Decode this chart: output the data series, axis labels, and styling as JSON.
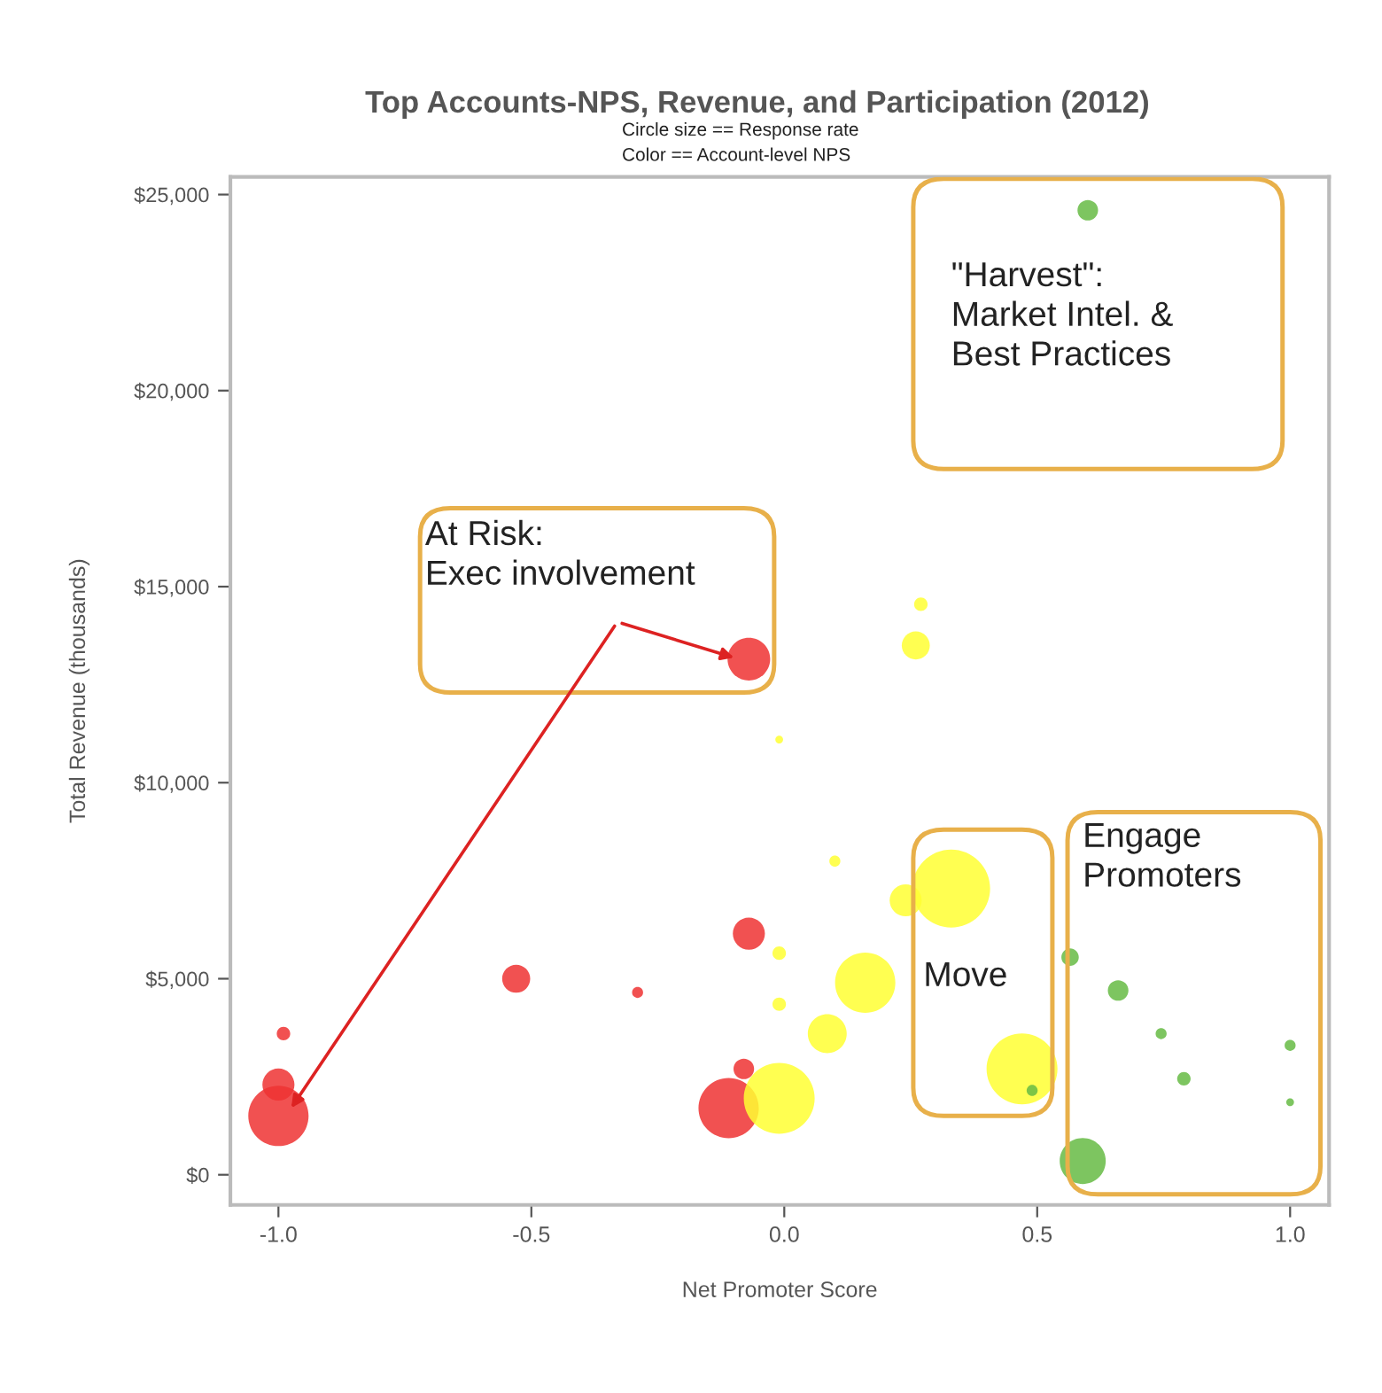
{
  "chart_data": {
    "type": "bubble",
    "title": "Top Accounts-NPS, Revenue, and Participation (2012)",
    "subtitle": "Circle size == Response rate\nColor == Account-level NPS",
    "xlabel": "Net Promoter Score",
    "ylabel": "Total Revenue (thousands)",
    "series": [
      {
        "color": "#ee3333",
        "x": [
          -1.0,
          -1.0,
          -0.99,
          -0.53,
          -0.29,
          -0.07,
          -0.07,
          -0.11,
          -0.08
        ],
        "values": [
          1500,
          2300,
          3600,
          5000,
          4650,
          13150,
          6150,
          1700,
          2700
        ],
        "sizes": [
          0.6,
          0.17,
          0.03,
          0.13,
          0.02,
          0.3,
          0.17,
          0.6,
          0.07
        ]
      },
      {
        "color": "#ffff33",
        "x": [
          -0.01,
          -0.01,
          -0.01,
          -0.01,
          0.085,
          0.16,
          0.1,
          0.24,
          0.33,
          0.26,
          0.27,
          0.47
        ],
        "values": [
          1950,
          11100,
          5650,
          4350,
          3600,
          4900,
          8000,
          7000,
          7300,
          13500,
          14550,
          2700
        ],
        "sizes": [
          0.83,
          0.01,
          0.03,
          0.03,
          0.25,
          0.6,
          0.02,
          0.17,
          1,
          0.13,
          0.03,
          0.83
        ]
      },
      {
        "color": "#66bb44",
        "x": [
          0.6,
          0.565,
          0.66,
          0.745,
          0.79,
          1.0,
          1.0,
          0.59,
          0.49
        ],
        "values": [
          24600,
          5550,
          4700,
          3600,
          2450,
          3300,
          1850,
          350,
          2150
        ],
        "sizes": [
          0.07,
          0.05,
          0.07,
          0.02,
          0.03,
          0.02,
          0.01,
          0.35,
          0.02
        ]
      }
    ],
    "xlim": [
      -1.095,
      1.077
    ],
    "ylim": [
      -770,
      25450
    ],
    "xticks": [
      {
        "value": -1,
        "label": "-1.0"
      },
      {
        "value": -0.5,
        "label": "-0.5"
      },
      {
        "value": 0,
        "label": "0.0"
      },
      {
        "value": 0.5,
        "label": "0.5"
      },
      {
        "value": 1,
        "label": "1.0"
      }
    ],
    "yticks": [
      {
        "value": 0,
        "label": "$0"
      },
      {
        "value": 5000,
        "label": "$5,000"
      },
      {
        "value": 10000,
        "label": "$10,000"
      },
      {
        "value": 15000,
        "label": "$15,000"
      },
      {
        "value": 20000,
        "label": "$20,000"
      },
      {
        "value": 25000,
        "label": "$25,000"
      }
    ],
    "grid": false,
    "marker": "circle",
    "annotations": [
      {
        "text": "At Risk:\nExec involvement",
        "x": -0.07,
        "y": 13150
      },
      "\"Harvest\":\nMarket Intel. &\nBest Practices",
      "Move",
      "Engage\nPromoters"
    ]
  }
}
